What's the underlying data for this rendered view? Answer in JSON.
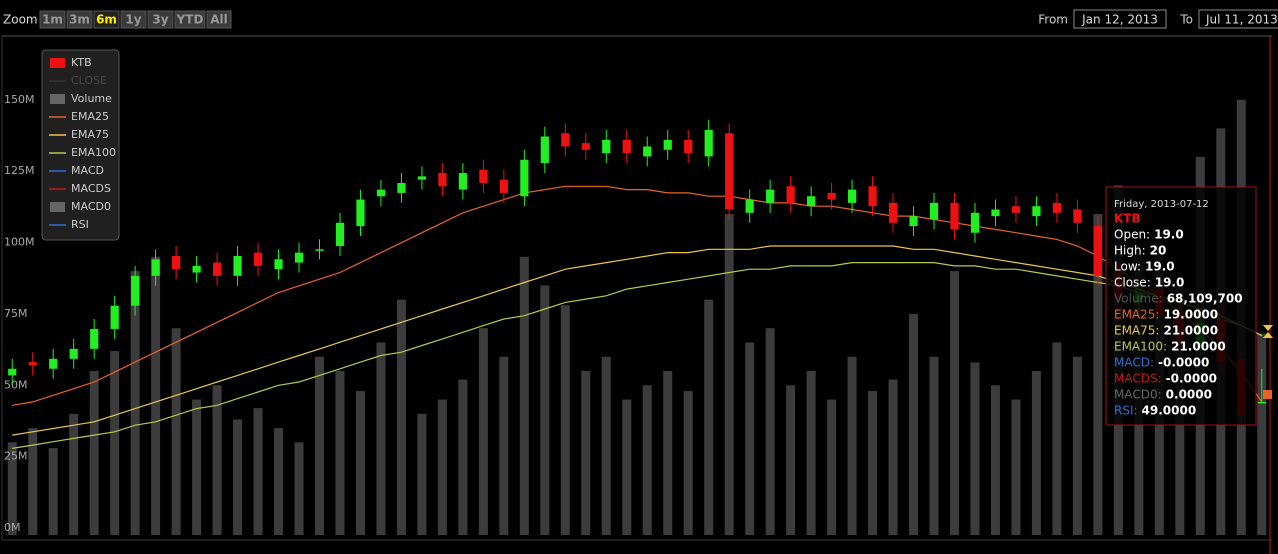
{
  "toolbar": {
    "zoom_label": "Zoom",
    "buttons": [
      "1m",
      "3m",
      "6m",
      "1y",
      "3y",
      "YTD",
      "All"
    ],
    "active": 2,
    "from_label": "From",
    "from_value": "Jan 12, 2013",
    "to_label": "To",
    "to_value": "Jul 11, 2013"
  },
  "legend": [
    {
      "name": "KTB",
      "color": "#ee1111",
      "symbol": "box",
      "faded": false
    },
    {
      "name": "CLOSE",
      "color": "#555555",
      "symbol": "line",
      "faded": true
    },
    {
      "name": "Volume",
      "color": "#666666",
      "symbol": "box",
      "faded": false
    },
    {
      "name": "EMA25",
      "color": "#e8632a",
      "symbol": "line",
      "faded": false
    },
    {
      "name": "EMA75",
      "color": "#e8c84a",
      "symbol": "line",
      "faded": false
    },
    {
      "name": "EMA100",
      "color": "#b8c84a",
      "symbol": "line",
      "faded": false
    },
    {
      "name": "MACD",
      "color": "#2f6fd0",
      "symbol": "line",
      "faded": false
    },
    {
      "name": "MACDS",
      "color": "#c01818",
      "symbol": "line",
      "faded": false
    },
    {
      "name": "MACD0",
      "color": "#666666",
      "symbol": "box",
      "faded": false
    },
    {
      "name": "RSI",
      "color": "#2f6fd0",
      "symbol": "line",
      "faded": false
    }
  ],
  "tooltip": {
    "date": "Friday, 2013-07-12",
    "title": "KTB",
    "rows": [
      {
        "label": "Open:",
        "value": "19.0",
        "color": "#ffffff"
      },
      {
        "label": "High:",
        "value": "20",
        "color": "#ffffff"
      },
      {
        "label": "Low:",
        "value": "19.0",
        "color": "#ffffff"
      },
      {
        "label": "Close:",
        "value": "19.0",
        "color": "#ffffff"
      },
      {
        "label": "Volume:",
        "value": "68,109,700",
        "color": "#555555"
      },
      {
        "label": "EMA25:",
        "value": "19.0000",
        "color": "#e8632a"
      },
      {
        "label": "EMA75:",
        "value": "21.0000",
        "color": "#e8c84a"
      },
      {
        "label": "EMA100:",
        "value": "21.0000",
        "color": "#b8c84a"
      },
      {
        "label": "MACD:",
        "value": "-0.0000",
        "color": "#2f6fd0"
      },
      {
        "label": "MACDS:",
        "value": "-0.0000",
        "color": "#c01818"
      },
      {
        "label": "MACD0:",
        "value": "0.0000",
        "color": "#666666"
      },
      {
        "label": "RSI:",
        "value": "49.0000",
        "color": "#2f6fd0"
      }
    ]
  },
  "chart_data": {
    "type": "candlestick",
    "ylim": [
      15.2,
      30
    ],
    "y2lim": [
      0,
      172
    ],
    "y2ticks": [
      {
        "value": 0,
        "label": "0M"
      },
      {
        "value": 25,
        "label": "25M"
      },
      {
        "value": 50,
        "label": "50M"
      },
      {
        "value": 75,
        "label": "75M"
      },
      {
        "value": 100,
        "label": "100M"
      },
      {
        "value": 125,
        "label": "125M"
      },
      {
        "value": 150,
        "label": "150M"
      }
    ],
    "candles": {
      "up_color": "#22ee22",
      "down_color": "#ee1111",
      "open": [
        19.8,
        20.2,
        20.0,
        20.3,
        20.6,
        21.2,
        21.9,
        22.8,
        23.4,
        22.9,
        23.2,
        22.8,
        23.5,
        23.0,
        23.2,
        23.6,
        23.7,
        24.3,
        25.2,
        25.3,
        25.7,
        25.9,
        25.4,
        26.0,
        25.7,
        25.2,
        26.2,
        27.1,
        26.8,
        26.5,
        26.9,
        26.4,
        26.6,
        26.9,
        26.4,
        27.1,
        24.7,
        25.0,
        25.5,
        24.9,
        25.3,
        25.0,
        25.5,
        25.0,
        24.3,
        24.5,
        25.0,
        24.1,
        24.6,
        24.9,
        24.6,
        25.0,
        24.8,
        24.3,
        22.9,
        22.0,
        22.4,
        21.7,
        20.7,
        21.5,
        20.3,
        19.0
      ],
      "high": [
        20.3,
        20.5,
        20.6,
        20.9,
        21.5,
        22.2,
        23.1,
        23.6,
        23.7,
        23.4,
        23.5,
        23.7,
        23.8,
        23.6,
        23.8,
        23.9,
        24.7,
        25.4,
        25.7,
        25.9,
        26.1,
        26.2,
        26.2,
        26.3,
        26.0,
        26.6,
        27.3,
        27.4,
        27.1,
        27.2,
        27.2,
        27.0,
        27.2,
        27.2,
        27.5,
        27.4,
        25.4,
        25.7,
        25.8,
        25.5,
        25.6,
        25.7,
        25.8,
        25.3,
        24.9,
        25.3,
        25.3,
        25.0,
        25.1,
        25.2,
        25.2,
        25.3,
        25.1,
        24.6,
        23.2,
        22.6,
        22.7,
        22.0,
        21.7,
        21.8,
        20.6,
        20
      ],
      "low": [
        19.5,
        19.8,
        19.7,
        20.0,
        20.3,
        20.9,
        21.6,
        22.5,
        22.7,
        22.6,
        22.5,
        22.5,
        22.8,
        22.7,
        22.9,
        23.3,
        23.4,
        24.0,
        24.9,
        25.0,
        25.4,
        25.2,
        25.1,
        25.3,
        25.0,
        24.9,
        25.9,
        26.4,
        26.3,
        26.2,
        26.2,
        26.1,
        26.3,
        26.2,
        26.1,
        24.5,
        24.4,
        24.7,
        24.7,
        24.6,
        24.8,
        24.7,
        24.6,
        24.1,
        24.0,
        24.2,
        23.9,
        23.8,
        24.3,
        24.4,
        24.3,
        24.4,
        24.1,
        22.5,
        21.8,
        21.7,
        21.3,
        20.5,
        20.4,
        19.9,
        18.3,
        19.0
      ],
      "close": [
        20.0,
        20.1,
        20.3,
        20.6,
        21.2,
        21.9,
        22.8,
        23.3,
        23.0,
        23.1,
        22.8,
        23.4,
        23.1,
        23.3,
        23.5,
        23.6,
        24.4,
        25.1,
        25.4,
        25.6,
        25.8,
        25.5,
        25.9,
        25.6,
        25.3,
        26.3,
        27.0,
        26.7,
        26.6,
        26.9,
        26.5,
        26.7,
        26.9,
        26.5,
        27.2,
        24.8,
        25.1,
        25.4,
        25.0,
        25.2,
        25.1,
        25.4,
        24.9,
        24.4,
        24.6,
        25.0,
        24.2,
        24.7,
        24.8,
        24.7,
        24.9,
        24.7,
        24.4,
        22.8,
        22.1,
        22.3,
        21.6,
        20.8,
        21.4,
        20.2,
        18.6,
        19.0
      ]
    },
    "volume": {
      "color": "#3c3c3c",
      "axis": "y2",
      "values": [
        30,
        35,
        28,
        40,
        55,
        62,
        90,
        95,
        70,
        45,
        50,
        38,
        42,
        35,
        30,
        60,
        55,
        48,
        65,
        80,
        40,
        45,
        52,
        70,
        60,
        95,
        85,
        78,
        55,
        60,
        45,
        50,
        55,
        48,
        80,
        110,
        65,
        70,
        50,
        55,
        45,
        60,
        48,
        52,
        75,
        60,
        90,
        58,
        50,
        45,
        55,
        65,
        60,
        110,
        120,
        95,
        100,
        85,
        130,
        140,
        150,
        68.1097
      ]
    },
    "lines": [
      {
        "color": "#e8632a",
        "values": [
          18.9,
          19.0,
          19.2,
          19.4,
          19.6,
          19.9,
          20.2,
          20.5,
          20.8,
          21.1,
          21.4,
          21.7,
          22.0,
          22.3,
          22.5,
          22.7,
          22.9,
          23.2,
          23.5,
          23.8,
          24.1,
          24.4,
          24.7,
          24.9,
          25.1,
          25.3,
          25.4,
          25.5,
          25.5,
          25.5,
          25.4,
          25.4,
          25.3,
          25.3,
          25.2,
          25.2,
          25.1,
          25.0,
          25.0,
          24.9,
          24.9,
          24.8,
          24.7,
          24.6,
          24.6,
          24.5,
          24.4,
          24.3,
          24.2,
          24.1,
          24.0,
          23.9,
          23.7,
          23.4,
          23.0,
          22.6,
          22.2,
          21.7,
          21.2,
          20.6,
          19.9,
          19.0
        ]
      },
      {
        "color": "#e8c84a",
        "values": [
          18.0,
          18.1,
          18.2,
          18.3,
          18.4,
          18.6,
          18.8,
          19.0,
          19.2,
          19.4,
          19.6,
          19.8,
          20.0,
          20.2,
          20.4,
          20.6,
          20.8,
          21.0,
          21.2,
          21.4,
          21.6,
          21.8,
          22.0,
          22.2,
          22.4,
          22.6,
          22.8,
          23.0,
          23.1,
          23.2,
          23.3,
          23.4,
          23.5,
          23.5,
          23.6,
          23.6,
          23.6,
          23.7,
          23.7,
          23.7,
          23.7,
          23.7,
          23.7,
          23.7,
          23.6,
          23.6,
          23.5,
          23.4,
          23.3,
          23.2,
          23.1,
          23.0,
          22.9,
          22.8,
          22.6,
          22.4,
          22.2,
          22.0,
          21.8,
          21.5,
          21.3,
          21.0
        ]
      },
      {
        "color": "#b8c84a",
        "values": [
          17.6,
          17.7,
          17.8,
          17.9,
          18.0,
          18.1,
          18.3,
          18.4,
          18.6,
          18.8,
          18.9,
          19.1,
          19.3,
          19.5,
          19.6,
          19.8,
          20.0,
          20.2,
          20.4,
          20.5,
          20.7,
          20.9,
          21.1,
          21.3,
          21.5,
          21.6,
          21.8,
          22.0,
          22.1,
          22.2,
          22.4,
          22.5,
          22.6,
          22.7,
          22.8,
          22.9,
          23.0,
          23.0,
          23.1,
          23.1,
          23.1,
          23.2,
          23.2,
          23.2,
          23.2,
          23.2,
          23.1,
          23.1,
          23.0,
          23.0,
          22.9,
          22.8,
          22.7,
          22.6,
          22.5,
          22.3,
          22.2,
          22.0,
          21.8,
          21.6,
          21.3,
          21.0
        ]
      }
    ]
  }
}
